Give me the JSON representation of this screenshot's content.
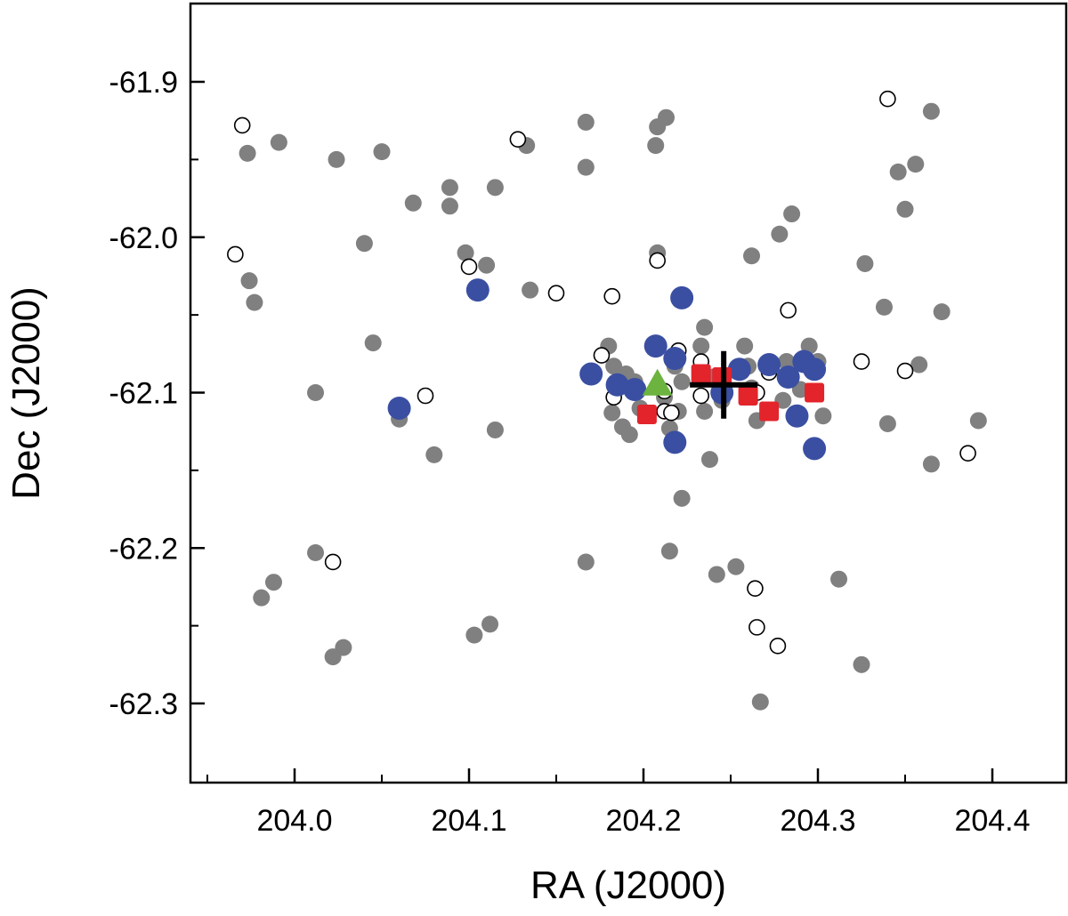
{
  "chart_data": {
    "type": "scatter",
    "xlabel": "RA (J2000)",
    "ylabel": "Dec (J2000)",
    "xlim": [
      203.95,
      204.45
    ],
    "ylim": [
      -62.35,
      -61.85
    ],
    "x_ticks": [
      204.0,
      204.1,
      204.2,
      204.3,
      204.4
    ],
    "y_ticks": [
      -61.9,
      -62.0,
      -62.1,
      -62.2,
      -62.3
    ],
    "x_tick_labels": [
      "204.0",
      "204.1",
      "204.2",
      "204.3",
      "204.4"
    ],
    "y_tick_labels": [
      "-61.9",
      "-62.0",
      "-62.1",
      "-62.2",
      "-62.3"
    ],
    "grid": false,
    "legend": "none",
    "series": [
      {
        "marker": "filled-circle",
        "color": "#808080",
        "points": [
          [
            203.973,
            -61.946
          ],
          [
            203.991,
            -61.939
          ],
          [
            204.024,
            -61.95
          ],
          [
            204.05,
            -61.945
          ],
          [
            204.068,
            -61.978
          ],
          [
            204.089,
            -61.968
          ],
          [
            204.115,
            -61.968
          ],
          [
            204.133,
            -61.941
          ],
          [
            204.167,
            -61.926
          ],
          [
            204.167,
            -61.955
          ],
          [
            204.207,
            -61.941
          ],
          [
            204.208,
            -61.929
          ],
          [
            204.213,
            -61.923
          ],
          [
            204.208,
            -62.01
          ],
          [
            204.262,
            -62.012
          ],
          [
            204.278,
            -61.998
          ],
          [
            204.285,
            -61.985
          ],
          [
            204.327,
            -62.017
          ],
          [
            204.338,
            -62.045
          ],
          [
            204.371,
            -62.048
          ],
          [
            204.346,
            -61.958
          ],
          [
            204.356,
            -61.953
          ],
          [
            204.35,
            -61.982
          ],
          [
            204.365,
            -61.919
          ],
          [
            204.04,
            -62.004
          ],
          [
            203.974,
            -62.028
          ],
          [
            203.977,
            -62.042
          ],
          [
            204.045,
            -62.068
          ],
          [
            204.11,
            -62.018
          ],
          [
            204.098,
            -62.01
          ],
          [
            204.135,
            -62.034
          ],
          [
            204.089,
            -61.98
          ],
          [
            204.012,
            -62.1
          ],
          [
            204.06,
            -62.117
          ],
          [
            204.08,
            -62.14
          ],
          [
            204.115,
            -62.124
          ],
          [
            204.18,
            -62.07
          ],
          [
            204.183,
            -62.083
          ],
          [
            204.19,
            -62.088
          ],
          [
            204.195,
            -62.093
          ],
          [
            204.182,
            -62.113
          ],
          [
            204.188,
            -62.122
          ],
          [
            204.192,
            -62.127
          ],
          [
            204.198,
            -62.11
          ],
          [
            204.212,
            -62.103
          ],
          [
            204.215,
            -62.123
          ],
          [
            204.22,
            -62.112
          ],
          [
            204.222,
            -62.093
          ],
          [
            204.218,
            -62.083
          ],
          [
            204.233,
            -62.07
          ],
          [
            204.24,
            -62.09
          ],
          [
            204.245,
            -62.105
          ],
          [
            204.235,
            -62.112
          ],
          [
            204.235,
            -62.058
          ],
          [
            204.258,
            -62.07
          ],
          [
            204.26,
            -62.083
          ],
          [
            204.262,
            -62.097
          ],
          [
            204.265,
            -62.118
          ],
          [
            204.28,
            -62.105
          ],
          [
            204.282,
            -62.08
          ],
          [
            204.295,
            -62.07
          ],
          [
            204.3,
            -62.08
          ],
          [
            204.303,
            -62.115
          ],
          [
            204.29,
            -62.098
          ],
          [
            204.238,
            -62.143
          ],
          [
            204.222,
            -62.168
          ],
          [
            204.215,
            -62.202
          ],
          [
            204.167,
            -62.209
          ],
          [
            204.242,
            -62.217
          ],
          [
            204.253,
            -62.212
          ],
          [
            204.267,
            -62.299
          ],
          [
            204.312,
            -62.22
          ],
          [
            204.325,
            -62.275
          ],
          [
            204.358,
            -62.082
          ],
          [
            204.34,
            -62.12
          ],
          [
            204.365,
            -62.146
          ],
          [
            204.392,
            -62.118
          ],
          [
            204.012,
            -62.203
          ],
          [
            203.988,
            -62.222
          ],
          [
            203.981,
            -62.232
          ],
          [
            204.022,
            -62.27
          ],
          [
            204.028,
            -62.264
          ],
          [
            204.103,
            -62.256
          ],
          [
            204.112,
            -62.249
          ]
        ]
      },
      {
        "marker": "open-circle",
        "color": "#ffffff",
        "points": [
          [
            203.97,
            -61.928
          ],
          [
            203.966,
            -62.011
          ],
          [
            204.128,
            -61.937
          ],
          [
            204.1,
            -62.019
          ],
          [
            204.15,
            -62.036
          ],
          [
            204.182,
            -62.038
          ],
          [
            204.208,
            -62.015
          ],
          [
            204.283,
            -62.047
          ],
          [
            204.176,
            -62.076
          ],
          [
            204.183,
            -62.103
          ],
          [
            204.212,
            -62.112
          ],
          [
            204.216,
            -62.113
          ],
          [
            204.212,
            -62.099
          ],
          [
            204.22,
            -62.073
          ],
          [
            204.233,
            -62.08
          ],
          [
            204.233,
            -62.102
          ],
          [
            204.265,
            -62.1
          ],
          [
            204.272,
            -62.087
          ],
          [
            204.34,
            -61.911
          ],
          [
            204.325,
            -62.08
          ],
          [
            204.35,
            -62.086
          ],
          [
            204.386,
            -62.139
          ],
          [
            204.075,
            -62.102
          ],
          [
            204.022,
            -62.209
          ],
          [
            204.264,
            -62.226
          ],
          [
            204.265,
            -62.251
          ],
          [
            204.277,
            -62.263
          ]
        ]
      },
      {
        "marker": "large-filled-circle",
        "color": "#3a4fa2",
        "points": [
          [
            204.105,
            -62.034
          ],
          [
            204.06,
            -62.11
          ],
          [
            204.222,
            -62.039
          ],
          [
            204.207,
            -62.07
          ],
          [
            204.17,
            -62.088
          ],
          [
            204.185,
            -62.095
          ],
          [
            204.195,
            -62.098
          ],
          [
            204.218,
            -62.078
          ],
          [
            204.218,
            -62.132
          ],
          [
            204.255,
            -62.085
          ],
          [
            204.272,
            -62.082
          ],
          [
            204.283,
            -62.09
          ],
          [
            204.292,
            -62.08
          ],
          [
            204.298,
            -62.085
          ],
          [
            204.288,
            -62.115
          ],
          [
            204.298,
            -62.136
          ],
          [
            204.245,
            -62.1
          ]
        ]
      },
      {
        "marker": "filled-square",
        "color": "#e3242b",
        "points": [
          [
            204.202,
            -62.114
          ],
          [
            204.233,
            -62.088
          ],
          [
            204.245,
            -62.09
          ],
          [
            204.26,
            -62.102
          ],
          [
            204.272,
            -62.112
          ],
          [
            204.298,
            -62.1
          ]
        ]
      },
      {
        "marker": "triangle",
        "color": "#6cb33f",
        "points": [
          [
            204.208,
            -62.095
          ]
        ]
      },
      {
        "marker": "cross",
        "color": "#000000",
        "points": [
          [
            204.246,
            -62.095
          ]
        ]
      }
    ]
  }
}
